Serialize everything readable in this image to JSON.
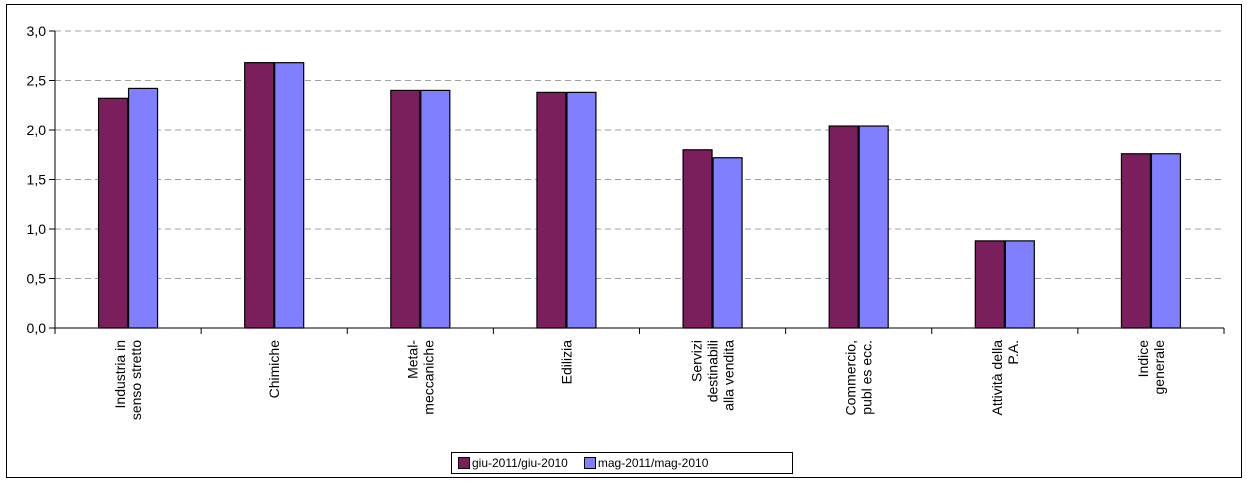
{
  "chart_data": {
    "type": "bar",
    "title": "",
    "xlabel": "",
    "ylabel": "",
    "ylim": [
      0,
      3.0
    ],
    "yticks": [
      "0,0",
      "0,5",
      "1,0",
      "1,5",
      "2,0",
      "2,5",
      "3,0"
    ],
    "grid": true,
    "legend_position": "bottom",
    "categories": [
      [
        "Industria in",
        "senso stretto"
      ],
      [
        "Chimiche"
      ],
      [
        "Metal-",
        "meccaniche"
      ],
      [
        "Edilizia"
      ],
      [
        "Servizi",
        "destinabili",
        "alla vendita"
      ],
      [
        "Commercio,",
        "publ es ecc."
      ],
      [
        "Attività della",
        "P.A."
      ],
      [
        "Indice",
        "generale"
      ]
    ],
    "series": [
      {
        "name": "giu-2011/giu-2010",
        "color": "#7b1f5c",
        "values": [
          2.32,
          2.68,
          2.4,
          2.38,
          1.8,
          2.04,
          0.88,
          1.76
        ]
      },
      {
        "name": "mag-2011/mag-2010",
        "color": "#8080ff",
        "values": [
          2.42,
          2.68,
          2.4,
          2.38,
          1.72,
          2.04,
          0.88,
          1.76
        ]
      }
    ]
  }
}
